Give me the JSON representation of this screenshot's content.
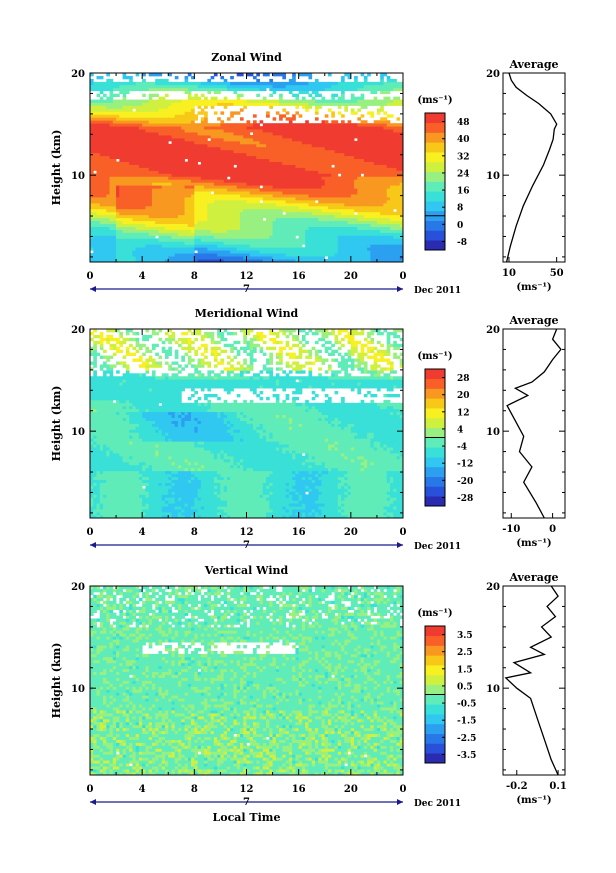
{
  "chart_data": [
    {
      "type": "heatmap",
      "title": "Zonal Wind",
      "ylabel": "Height (km)",
      "xticks": [
        "0",
        "4",
        "8",
        "12",
        "16",
        "20",
        "0"
      ],
      "yticks": [
        "10",
        "20"
      ],
      "x_range": [
        0,
        24
      ],
      "y_range": [
        1.5,
        20
      ],
      "date_marker": "7",
      "date_label": "Dec 2011",
      "colorbar": {
        "unit": "(ms⁻¹)",
        "tick_labels": [
          "48",
          "40",
          "32",
          "24",
          "16",
          "8",
          "0",
          "-8"
        ],
        "tick_values": [
          48,
          40,
          32,
          24,
          16,
          8,
          0,
          -8
        ],
        "range": [
          -12,
          52
        ],
        "colors": [
          "#2a2bb0",
          "#2850d8",
          "#2878e8",
          "#2ca0f0",
          "#30c8f0",
          "#38e0d8",
          "#60ecb8",
          "#98f080",
          "#d0f040",
          "#f8f020",
          "#f8c818",
          "#f89820",
          "#f86028",
          "#f03c30"
        ]
      },
      "average_profile": {
        "title": "Average",
        "xticks": [
          "10",
          "50"
        ],
        "xtick_values": [
          10,
          50
        ],
        "x_range": [
          5,
          57
        ],
        "xlabel": "(ms⁻¹)",
        "yticks": [
          "10",
          "20"
        ],
        "points": [
          [
            8,
            1.5
          ],
          [
            11,
            3
          ],
          [
            16,
            5
          ],
          [
            22,
            7
          ],
          [
            30,
            9
          ],
          [
            39,
            11
          ],
          [
            44,
            12.5
          ],
          [
            47,
            13.5
          ],
          [
            48,
            14.5
          ],
          [
            50,
            15
          ],
          [
            45,
            16
          ],
          [
            35,
            17
          ],
          [
            25,
            17.8
          ],
          [
            16,
            18.6
          ],
          [
            12,
            19.3
          ],
          [
            10,
            20
          ]
        ]
      }
    },
    {
      "type": "heatmap",
      "title": "Meridional Wind",
      "ylabel": "Height (km)",
      "xticks": [
        "0",
        "4",
        "8",
        "12",
        "16",
        "20",
        "0"
      ],
      "yticks": [
        "10",
        "20"
      ],
      "x_range": [
        0,
        24
      ],
      "y_range": [
        1.5,
        20
      ],
      "date_marker": "7",
      "date_label": "Dec 2011",
      "colorbar": {
        "unit": "(ms⁻¹)",
        "tick_labels": [
          "28",
          "20",
          "12",
          "4",
          "-4",
          "-12",
          "-20",
          "-28"
        ],
        "tick_values": [
          28,
          20,
          12,
          4,
          -4,
          -12,
          -20,
          -28
        ],
        "range": [
          -32,
          32
        ],
        "colors": [
          "#2a2bb0",
          "#2850d8",
          "#2878e8",
          "#2ca0f0",
          "#30c8f0",
          "#38e0d8",
          "#60ecb8",
          "#98f080",
          "#d0f040",
          "#f8f020",
          "#f8c818",
          "#f89820",
          "#f86028",
          "#f03c30"
        ]
      },
      "average_profile": {
        "title": "Average",
        "xticks": [
          "-10",
          "0"
        ],
        "xtick_values": [
          -10,
          0
        ],
        "x_range": [
          -12,
          3
        ],
        "xlabel": "(ms⁻¹)",
        "yticks": [
          "10",
          "20"
        ],
        "points": [
          [
            -2,
            1.5
          ],
          [
            -4,
            3
          ],
          [
            -7,
            5
          ],
          [
            -5,
            6.5
          ],
          [
            -8,
            8
          ],
          [
            -7,
            9.5
          ],
          [
            -9,
            11
          ],
          [
            -11,
            12.5
          ],
          [
            -6,
            13.5
          ],
          [
            -9,
            14.2
          ],
          [
            -5,
            14.8
          ],
          [
            -2,
            15.8
          ],
          [
            0,
            17
          ],
          [
            2,
            18
          ],
          [
            0,
            19
          ],
          [
            1,
            20
          ]
        ]
      }
    },
    {
      "type": "heatmap",
      "title": "Vertical Wind",
      "ylabel": "Height (km)",
      "xlabel": "Local Time",
      "xticks": [
        "0",
        "4",
        "8",
        "12",
        "16",
        "20",
        "0"
      ],
      "yticks": [
        "10",
        "20"
      ],
      "x_range": [
        0,
        24
      ],
      "y_range": [
        1.5,
        20
      ],
      "date_marker": "7",
      "date_label": "Dec 2011",
      "colorbar": {
        "unit": "(ms⁻¹)",
        "tick_labels": [
          "3.5",
          "2.5",
          "1.5",
          "0.5",
          "-0.5",
          "-1.5",
          "-2.5",
          "-3.5"
        ],
        "tick_values": [
          3.5,
          2.5,
          1.5,
          0.5,
          -0.5,
          -1.5,
          -2.5,
          -3.5
        ],
        "range": [
          -4,
          4
        ],
        "colors": [
          "#2a2bb0",
          "#2850d8",
          "#2878e8",
          "#2ca0f0",
          "#30c8f0",
          "#38e0d8",
          "#60ecb8",
          "#98f080",
          "#d0f040",
          "#f8f020",
          "#f8c818",
          "#f89820",
          "#f86028",
          "#f03c30"
        ]
      },
      "average_profile": {
        "title": "Average",
        "xticks": [
          "-0.2",
          "0.1"
        ],
        "xtick_values": [
          -0.2,
          0.1
        ],
        "x_range": [
          -0.3,
          0.15
        ],
        "xlabel": "(ms⁻¹)",
        "yticks": [
          "10",
          "20"
        ],
        "points": [
          [
            0.1,
            1.5
          ],
          [
            0.05,
            3
          ],
          [
            0.0,
            5
          ],
          [
            -0.05,
            7
          ],
          [
            -0.1,
            9
          ],
          [
            -0.2,
            10
          ],
          [
            -0.28,
            11
          ],
          [
            -0.1,
            11.5
          ],
          [
            -0.22,
            12.5
          ],
          [
            0.0,
            13.3
          ],
          [
            -0.1,
            14
          ],
          [
            0.05,
            15
          ],
          [
            -0.02,
            16
          ],
          [
            0.08,
            17
          ],
          [
            0.02,
            18
          ],
          [
            0.1,
            19
          ],
          [
            0.05,
            20
          ]
        ]
      }
    }
  ]
}
